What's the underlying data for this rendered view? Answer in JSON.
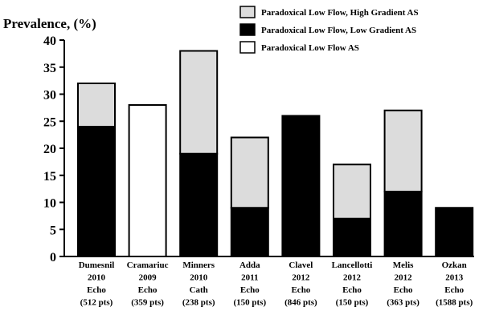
{
  "chart_data": {
    "type": "bar",
    "stacked": true,
    "ylabel": "Prevalence, (%)",
    "ylim": [
      0,
      40
    ],
    "yticks": [
      0,
      5,
      10,
      15,
      20,
      25,
      30,
      35,
      40
    ],
    "grid": false,
    "legend_position": "top-right",
    "categories": [
      {
        "name": "Dumesnil",
        "year": "2010",
        "method": "Echo",
        "patients": "(512 pts)"
      },
      {
        "name": "Cramariuc",
        "year": "2009",
        "method": "Echo",
        "patients": "(359 pts)"
      },
      {
        "name": "Minners",
        "year": "2010",
        "method": "Cath",
        "patients": "(238 pts)"
      },
      {
        "name": "Adda",
        "year": "2011",
        "method": "Echo",
        "patients": "(150 pts)"
      },
      {
        "name": "Clavel",
        "year": "2012",
        "method": "Echo",
        "patients": "(846 pts)"
      },
      {
        "name": "Lancellotti",
        "year": "2012",
        "method": "Echo",
        "patients": "(150 pts)"
      },
      {
        "name": "Melis",
        "year": "2012",
        "method": "Echo",
        "patients": "(363 pts)"
      },
      {
        "name": "Ozkan",
        "year": "2013",
        "method": "Echo",
        "patients": "(1588 pts)"
      }
    ],
    "series": [
      {
        "name": "Paradoxical Low Flow, Low Gradient AS",
        "color": "#000000",
        "values": [
          24,
          0,
          19,
          9,
          26,
          7,
          12,
          9
        ]
      },
      {
        "name": "Paradoxical Low Flow AS",
        "color": "#ffffff",
        "values": [
          0,
          28,
          0,
          0,
          0,
          0,
          0,
          0
        ]
      },
      {
        "name": "Paradoxical Low Flow, High Gradient AS",
        "color": "#dcdcdc",
        "values": [
          8,
          0,
          19,
          13,
          0,
          10,
          15,
          0
        ]
      }
    ],
    "legend_order": [
      "Paradoxical Low Flow, High Gradient AS",
      "Paradoxical Low Flow, Low Gradient AS",
      "Paradoxical Low Flow AS"
    ]
  }
}
